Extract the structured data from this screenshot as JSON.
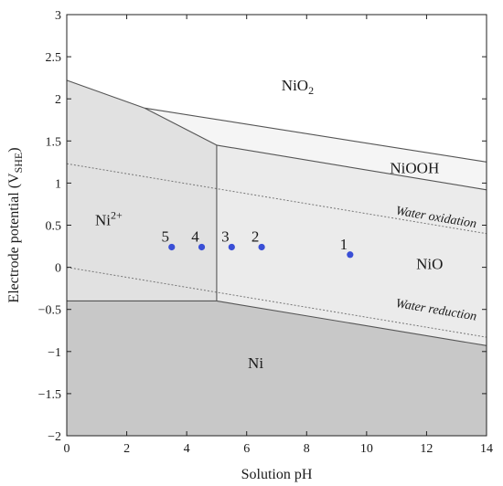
{
  "chart_data": {
    "type": "scatter",
    "xlabel": "Solution pH",
    "ylabel": "Electrode potential (V",
    "ylabel_sub": "SHE",
    "ylabel_close": ")",
    "xlim": [
      0,
      14
    ],
    "ylim": [
      -2,
      3
    ],
    "xticks": [
      0,
      2,
      4,
      6,
      8,
      10,
      12,
      14
    ],
    "yticks": [
      -2,
      -1.5,
      -1,
      -0.5,
      0,
      0.5,
      1,
      1.5,
      2,
      2.5,
      3
    ],
    "xtick_labels": [
      "0",
      "2",
      "4",
      "6",
      "8",
      "10",
      "12",
      "14"
    ],
    "ytick_labels": [
      "−2",
      "−1.5",
      "−1",
      "−0.5",
      "0",
      "0.5",
      "1",
      "1.5",
      "2",
      "2.5",
      "3"
    ],
    "grid": false,
    "colors": {
      "ni": "#c8c8c8",
      "ni2plus": "#e1e1e1",
      "nio": "#ebebeb",
      "niooh": "#f5f5f5",
      "nio2": "#ffffff",
      "boundary": "#555555",
      "point": "#3a4fd6"
    },
    "regions": [
      {
        "name": "Ni",
        "polygon": [
          [
            0,
            -2
          ],
          [
            0,
            -0.4
          ],
          [
            5,
            -0.4
          ],
          [
            14,
            -0.93
          ],
          [
            14,
            -2
          ]
        ]
      },
      {
        "name": "Ni2+",
        "polygon": [
          [
            0,
            -0.4
          ],
          [
            0,
            2.22
          ],
          [
            2.6,
            1.89
          ],
          [
            5,
            1.45
          ],
          [
            5,
            -0.4
          ]
        ]
      },
      {
        "name": "NiO",
        "polygon": [
          [
            5,
            -0.4
          ],
          [
            5,
            1.45
          ],
          [
            14,
            0.92
          ],
          [
            14,
            -0.93
          ]
        ]
      },
      {
        "name": "NiOOH",
        "polygon": [
          [
            2.6,
            1.89
          ],
          [
            14,
            1.25
          ],
          [
            14,
            0.92
          ],
          [
            5,
            1.45
          ]
        ]
      }
    ],
    "boundaries": [
      {
        "from": [
          0,
          -0.4
        ],
        "to": [
          5,
          -0.4
        ]
      },
      {
        "from": [
          5,
          -0.4
        ],
        "to": [
          14,
          -0.93
        ]
      },
      {
        "from": [
          5,
          -0.4
        ],
        "to": [
          5,
          1.45
        ]
      },
      {
        "from": [
          0,
          2.22
        ],
        "to": [
          2.6,
          1.89
        ]
      },
      {
        "from": [
          2.6,
          1.89
        ],
        "to": [
          5,
          1.45
        ]
      },
      {
        "from": [
          5,
          1.45
        ],
        "to": [
          14,
          0.92
        ]
      },
      {
        "from": [
          2.6,
          1.89
        ],
        "to": [
          14,
          1.25
        ]
      }
    ],
    "water_lines": [
      {
        "name": "Water oxidation",
        "from": [
          0,
          1.23
        ],
        "to": [
          14,
          0.4
        ]
      },
      {
        "name": "Water reduction",
        "from": [
          0,
          0.0
        ],
        "to": [
          14,
          -0.83
        ]
      }
    ],
    "region_labels": [
      {
        "text": "NiO",
        "sub": "2",
        "sup": "",
        "x": 7.7,
        "y": 2.1
      },
      {
        "text": "NiOOH",
        "sub": "",
        "sup": "",
        "x": 11.6,
        "y": 1.12
      },
      {
        "text": "Ni",
        "sub": "",
        "sup": "2+",
        "x": 1.4,
        "y": 0.5
      },
      {
        "text": "NiO",
        "sub": "",
        "sup": "",
        "x": 12.1,
        "y": -0.02
      },
      {
        "text": "Ni",
        "sub": "",
        "sup": "",
        "x": 6.3,
        "y": -1.2
      }
    ],
    "line_labels": [
      {
        "text": "Water oxidation",
        "x": 12.3,
        "y": 0.55,
        "along": "Water oxidation"
      },
      {
        "text": "Water reduction",
        "x": 12.3,
        "y": -0.55,
        "along": "Water reduction"
      }
    ],
    "points": [
      {
        "label": "1",
        "x": 9.45,
        "y": 0.15
      },
      {
        "label": "2",
        "x": 6.5,
        "y": 0.24
      },
      {
        "label": "3",
        "x": 5.5,
        "y": 0.24
      },
      {
        "label": "4",
        "x": 4.5,
        "y": 0.24
      },
      {
        "label": "5",
        "x": 3.5,
        "y": 0.24
      }
    ]
  }
}
